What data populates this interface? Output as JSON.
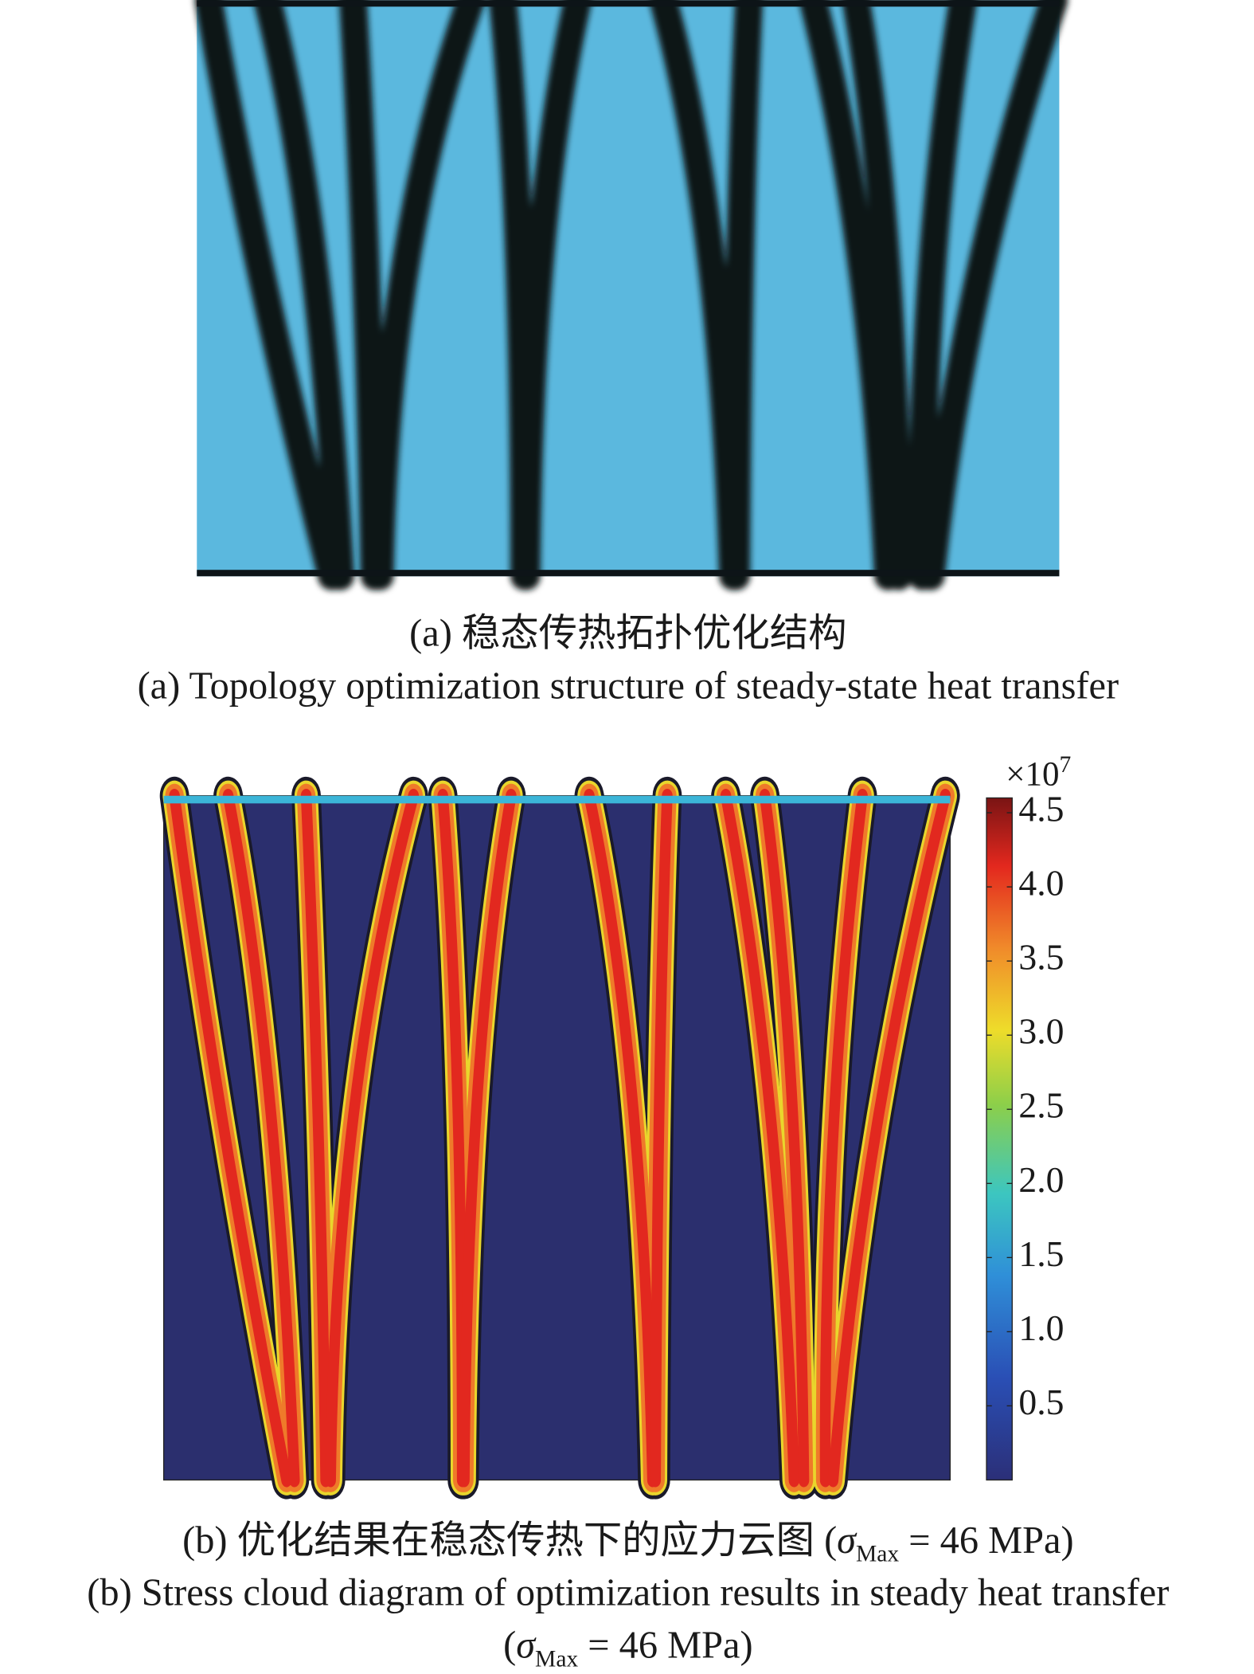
{
  "panel_a": {
    "caption_zh": "(a) 稳态传热拓扑优化结构",
    "caption_en": "(a) Topology optimization structure of steady-state heat transfer"
  },
  "panel_b": {
    "caption_zh": {
      "text": "(b) 优化结果在稳态传热下的应力云图 (",
      "symbol": "σ",
      "subscript": "Max",
      "rest": " = 46 MPa)"
    },
    "caption_en": {
      "line1": "(b) Stress cloud diagram of optimization results in steady heat transfer",
      "line2": {
        "open": "(",
        "symbol": "σ",
        "subscript": "Max",
        "rest": " = 46 MPa)"
      }
    },
    "colorbar": {
      "lim": [
        0,
        4.6
      ],
      "ticks": [
        0.5,
        {
          "value": 1,
          "label": "1.0"
        },
        1.5,
        {
          "value": 2,
          "label": "2.0"
        },
        2.5,
        {
          "value": 3,
          "label": "3.0"
        },
        3.5,
        {
          "value": 4,
          "label": "4.0"
        },
        4.5
      ],
      "multiplier": "×10",
      "exponent": "7"
    }
  }
}
